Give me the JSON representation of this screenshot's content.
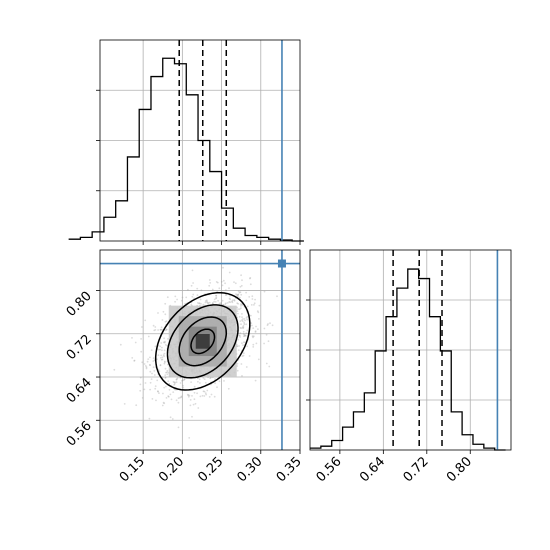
{
  "chart_data": [
    {
      "type": "histogram",
      "panel": "top-left marginal",
      "parameter_axis": "x",
      "bins_x": [
        0.055,
        0.07,
        0.085,
        0.1,
        0.115,
        0.13,
        0.145,
        0.16,
        0.175,
        0.19,
        0.205,
        0.22,
        0.235,
        0.25,
        0.265,
        0.28,
        0.295,
        0.31,
        0.325,
        0.34,
        0.355
      ],
      "counts": [
        0.01,
        0.02,
        0.05,
        0.13,
        0.22,
        0.46,
        0.72,
        0.9,
        1.0,
        0.97,
        0.8,
        0.55,
        0.38,
        0.18,
        0.07,
        0.03,
        0.02,
        0.01,
        0.005,
        0.0
      ],
      "quantile_lines": [
        0.196,
        0.226,
        0.256
      ],
      "truth_line": 0.327,
      "xlim": [
        0.095,
        0.35
      ],
      "grid": true
    },
    {
      "type": "contour-scatter",
      "panel": "bottom-left joint",
      "xlim": [
        0.095,
        0.35
      ],
      "ylim": [
        0.505,
        0.875
      ],
      "x_tick_labels": [
        "0.15",
        "0.20",
        "0.25",
        "0.30",
        "0.35"
      ],
      "x_ticks": [
        0.15,
        0.2,
        0.25,
        0.3,
        0.35
      ],
      "y_tick_labels": [
        "0.56",
        "0.64",
        "0.72",
        "0.80"
      ],
      "y_ticks": [
        0.56,
        0.64,
        0.72,
        0.8
      ],
      "center": [
        0.226,
        0.706
      ],
      "contour_levels_std": [
        0.5,
        1.0,
        1.5,
        2.0
      ],
      "sigma_x": 0.03,
      "sigma_y": 0.045,
      "correlation": 0.35,
      "truth_marker": [
        0.327,
        0.85
      ],
      "truth_color": "#4682b4",
      "grid": true
    },
    {
      "type": "histogram",
      "panel": "bottom-right marginal",
      "parameter_axis": "x",
      "bins_x": [
        0.505,
        0.525,
        0.545,
        0.565,
        0.585,
        0.605,
        0.625,
        0.645,
        0.665,
        0.685,
        0.705,
        0.725,
        0.745,
        0.765,
        0.785,
        0.805,
        0.825,
        0.845,
        0.865
      ],
      "counts": [
        0.01,
        0.02,
        0.05,
        0.12,
        0.2,
        0.3,
        0.52,
        0.7,
        0.85,
        0.95,
        0.9,
        0.7,
        0.52,
        0.2,
        0.08,
        0.03,
        0.01,
        0.0
      ],
      "quantile_lines": [
        0.658,
        0.706,
        0.748
      ],
      "truth_line": 0.85,
      "xlim": [
        0.505,
        0.875
      ],
      "x_tick_labels": [
        "0.56",
        "0.64",
        "0.72",
        "0.80"
      ],
      "x_ticks": [
        0.56,
        0.64,
        0.72,
        0.8
      ],
      "grid": true
    }
  ]
}
